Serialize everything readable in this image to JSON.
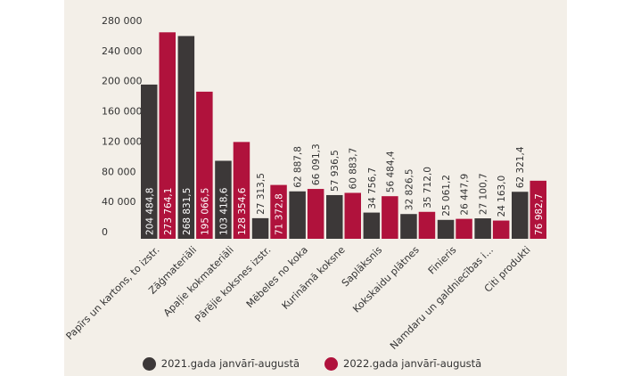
{
  "chart_data": {
    "type": "bar",
    "categories": [
      "Papīrs un kartons, to izstr.",
      "Zāģmateriāli",
      "Apaļie kokmateriāli",
      "Pārējie koksnes izstr.",
      "Mēbeles no koka",
      "Kurināmā koksne",
      "Saplāksnis",
      "Kokskaidu plātnes",
      "Finieris",
      "Namdaru un galdniecības i...",
      "Citi produkti"
    ],
    "series": [
      {
        "name": "2021.gada janvārī-augustā",
        "color": "#3c3838",
        "values": [
          204484.8,
          268831.5,
          103418.6,
          27313.5,
          62887.8,
          57936.5,
          34756.7,
          32826.5,
          25061.2,
          27100.7,
          62321.4
        ],
        "labels": [
          "204 484,8",
          "268 831,5",
          "103 418,6",
          "27 313,5",
          "62 887,8",
          "57 936,5",
          "34 756,7",
          "32 826,5",
          "25 061,2",
          "27 100,7",
          "62 321,4"
        ]
      },
      {
        "name": "2022.gada janvārī-augustā",
        "color": "#b0123c",
        "values": [
          273764.1,
          195066.5,
          128354.6,
          71372.8,
          66091.3,
          60883.7,
          56484.4,
          35712.0,
          26447.9,
          24163.0,
          76982.7
        ],
        "labels": [
          "273 764,1",
          "195 066,5",
          "128 354,6",
          "71 372,8",
          "66 091,3",
          "60 883,7",
          "56 484,4",
          "35 712,0",
          "26 447,9",
          "24 163,0",
          "76 982,7"
        ]
      }
    ],
    "y_ticks": [
      0,
      40000,
      80000,
      120000,
      160000,
      200000,
      240000,
      280000
    ],
    "y_tick_labels": [
      "0",
      "40 000",
      "80 000",
      "120 000",
      "160 000",
      "200 000",
      "240 000",
      "280 000"
    ],
    "ylim": [
      0,
      280000
    ],
    "grid": false,
    "legend_position": "bottom",
    "title": "",
    "xlabel": "",
    "ylabel": ""
  }
}
